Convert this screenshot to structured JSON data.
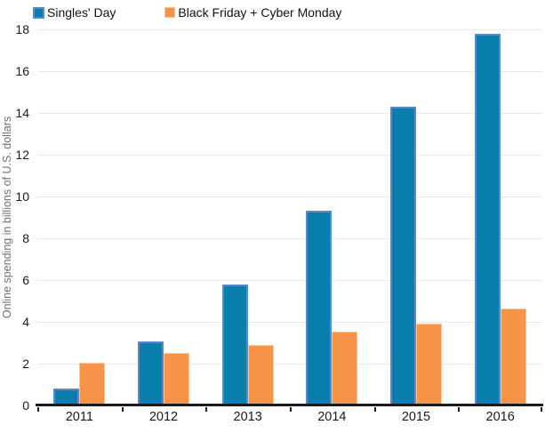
{
  "chart_data": {
    "type": "bar",
    "title": "",
    "xlabel": "",
    "ylabel": "Online spending in billions of U.S. dollars",
    "categories": [
      "2011",
      "2012",
      "2013",
      "2014",
      "2015",
      "2016"
    ],
    "series": [
      {
        "name": "Singles' Day",
        "values": [
          0.8,
          3.05,
          5.8,
          9.3,
          14.3,
          17.8
        ],
        "fill": "#0a7fae",
        "stroke": "#5e88c8"
      },
      {
        "name": "Black Friday + Cyber Monday",
        "values": [
          2.05,
          2.5,
          2.9,
          3.55,
          3.9,
          4.65
        ],
        "fill": "#f79447",
        "stroke": "#fcc795"
      }
    ],
    "ylim": [
      0,
      18
    ],
    "ytick_step": 2,
    "ytick_labels": [
      "0",
      "2",
      "4",
      "6",
      "8",
      "10",
      "12",
      "14",
      "16",
      "18"
    ],
    "grid": true,
    "legend_position": "top"
  },
  "colors": {
    "gridline": "#e8ebec",
    "axis": "#1a1a1a",
    "tick_text": "#1a1a1a",
    "y_title_text": "#6f6f6f",
    "background": "#ffffff"
  }
}
